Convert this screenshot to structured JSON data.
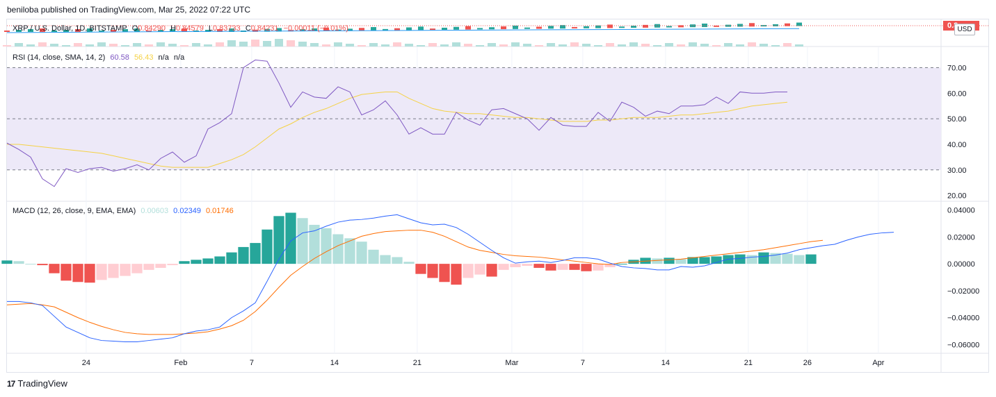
{
  "header": {
    "publisher_line": "beniloba published on TradingView.com, Mar 25, 2022 07:22 UTC"
  },
  "footer": {
    "brand": "TradingView",
    "logo_glyph": "17"
  },
  "price_pane": {
    "symbol": "XRP / U.S. Dollar, 1D, BITSTAMP",
    "open_label": "O",
    "open": "0.84290",
    "high_label": "H",
    "high": "0.84579",
    "low_label": "L",
    "low": "0.83733",
    "close_label": "C",
    "close": "0.84231",
    "change": "−0.00011 (−0.01%)",
    "price_tag": "0.8",
    "currency": "USD",
    "colors": {
      "up": "#26a69a",
      "down": "#ef5350",
      "ma": "#2196f3"
    }
  },
  "rsi_pane": {
    "title": "RSI (14, close, SMA, 14, 2)",
    "rsi_value": "60.58",
    "sma_value": "56.43",
    "extra1": "n/a",
    "extra2": "n/a",
    "colors": {
      "rsi": "#7e57c2",
      "sma": "#f5d245",
      "band": "#ede9f8"
    }
  },
  "macd_pane": {
    "title": "MACD (12, 26, close, 9, EMA, EMA)",
    "hist_value": "0.00603",
    "macd_value": "0.02349",
    "signal_value": "0.01746",
    "colors": {
      "macd": "#2962ff",
      "signal": "#ff6d00",
      "hist_up_strong": "#26a69a",
      "hist_up_weak": "#b2dfdb",
      "hist_down_strong": "#ef5350",
      "hist_down_weak": "#ffcdd2"
    }
  },
  "chart_data": [
    {
      "type": "line",
      "title": "RSI (14, close, SMA, 14, 2)",
      "ylim": [
        18,
        78
      ],
      "y_ticks": [
        "70.00",
        "60.00",
        "50.00",
        "40.00",
        "30.00",
        "20.00"
      ],
      "y_tick_values": [
        70,
        60,
        50,
        40,
        30,
        20
      ],
      "levels": [
        70,
        50,
        30
      ],
      "series": [
        {
          "name": "RSI",
          "values": [
            40.5,
            38,
            35,
            26.5,
            23.5,
            30.5,
            29,
            30.5,
            31,
            29.5,
            30.5,
            32,
            30,
            34.5,
            37,
            33,
            35.5,
            46,
            48.5,
            52,
            70,
            73,
            72.5,
            64,
            54.5,
            60.5,
            58.5,
            58,
            62.5,
            60.5,
            51.5,
            53.5,
            57,
            51.5,
            44,
            46.5,
            44,
            44,
            52.5,
            49.5,
            47.5,
            53.5,
            54,
            52,
            50,
            45.5,
            50.5,
            47.5,
            47,
            47,
            52.5,
            49,
            56.5,
            54.5,
            51,
            53,
            52,
            55,
            55,
            55.5,
            58.5,
            56,
            60.5,
            60,
            60,
            60.5,
            60.5
          ]
        },
        {
          "name": "SMA",
          "values": [
            40,
            40,
            39.5,
            39,
            38.5,
            38,
            37.5,
            37,
            36.5,
            35.5,
            34.5,
            33.5,
            32.5,
            31.5,
            31,
            31,
            31,
            31,
            32.5,
            34,
            36,
            39,
            42.5,
            46,
            48,
            50.5,
            52.5,
            54,
            56,
            58,
            59.5,
            60,
            60.5,
            60.5,
            58,
            56,
            54,
            53,
            52.5,
            52,
            52,
            51.5,
            51,
            50.5,
            50.5,
            50,
            49.5,
            49,
            49,
            49,
            49.5,
            49.5,
            50,
            50.5,
            50.5,
            50.5,
            51,
            51.5,
            51.5,
            52,
            52.5,
            53,
            54,
            55,
            55.5,
            56,
            56.5
          ]
        }
      ]
    },
    {
      "type": "bar",
      "title": "MACD (12, 26, close, 9, EMA, EMA)",
      "ylim": [
        -0.066,
        0.046
      ],
      "y_ticks": [
        "0.04000",
        "0.02000",
        "0.00000",
        "−0.02000",
        "−0.04000",
        "−0.06000"
      ],
      "y_tick_values": [
        0.04,
        0.02,
        0,
        -0.02,
        -0.04,
        -0.06
      ],
      "x_ticks": [
        {
          "label": "24",
          "index": 6.7
        },
        {
          "label": "Feb",
          "index": 14.7
        },
        {
          "label": "7",
          "index": 20.7
        },
        {
          "label": "14",
          "index": 27.7
        },
        {
          "label": "21",
          "index": 34.7
        },
        {
          "label": "Mar",
          "index": 42.7
        },
        {
          "label": "7",
          "index": 48.7
        },
        {
          "label": "14",
          "index": 55.7
        },
        {
          "label": "21",
          "index": 62.7
        },
        {
          "label": "26",
          "index": 67.7
        },
        {
          "label": "Apr",
          "index": 73.7
        }
      ],
      "x_count": 80,
      "series": [
        {
          "name": "Histogram",
          "values": [
            0.0025,
            0.002,
            0,
            -0.001,
            -0.007,
            -0.0125,
            -0.0135,
            -0.014,
            -0.012,
            -0.0105,
            -0.009,
            -0.007,
            -0.0045,
            -0.003,
            -0.001,
            0.002,
            0.003,
            0.004,
            0.0055,
            0.0085,
            0.0125,
            0.0155,
            0.0255,
            0.0355,
            0.038,
            0.034,
            0.029,
            0.0265,
            0.022,
            0.019,
            0.0165,
            0.0105,
            0.0065,
            0.005,
            0.0015,
            -0.0075,
            -0.0105,
            -0.0135,
            -0.0155,
            -0.0105,
            -0.008,
            -0.0095,
            -0.0045,
            -0.0025,
            -0.0015,
            -0.003,
            -0.005,
            -0.0045,
            -0.0045,
            -0.0055,
            -0.005,
            -0.0025,
            0,
            0.003,
            0.0045,
            0.004,
            0.0045,
            0.0035,
            0.005,
            0.005,
            0.0055,
            0.0065,
            0.007,
            0.0065,
            0.0085,
            0.008,
            0.0075,
            0.0065,
            0.007
          ]
        },
        {
          "name": "MACD",
          "values": [
            -0.028,
            -0.028,
            -0.029,
            -0.031,
            -0.039,
            -0.047,
            -0.051,
            -0.055,
            -0.057,
            -0.0575,
            -0.058,
            -0.058,
            -0.057,
            -0.056,
            -0.055,
            -0.052,
            -0.05,
            -0.049,
            -0.047,
            -0.04,
            -0.035,
            -0.029,
            -0.013,
            0.0035,
            0.017,
            0.023,
            0.0245,
            0.028,
            0.031,
            0.0325,
            0.033,
            0.034,
            0.0355,
            0.0365,
            0.0335,
            0.0305,
            0.029,
            0.0295,
            0.027,
            0.022,
            0.016,
            0.01,
            0.0045,
            0.0005,
            0.0015,
            0.002,
            0.001,
            0.0025,
            0.0045,
            0.0045,
            0.0035,
            0.0005,
            -0.002,
            -0.003,
            -0.0035,
            -0.0045,
            -0.0045,
            -0.002,
            -0.0025,
            -0.0015,
            0.001,
            0.0035,
            0.004,
            0.005,
            0.0055,
            0.0065,
            0.008,
            0.0105,
            0.012,
            0.0135,
            0.0145,
            0.0175,
            0.02,
            0.022,
            0.023,
            0.0235
          ]
        },
        {
          "name": "Signal",
          "values": [
            -0.0305,
            -0.03,
            -0.0295,
            -0.0305,
            -0.032,
            -0.036,
            -0.04,
            -0.0435,
            -0.0465,
            -0.049,
            -0.051,
            -0.052,
            -0.0525,
            -0.0525,
            -0.0525,
            -0.052,
            -0.0515,
            -0.0505,
            -0.0485,
            -0.046,
            -0.042,
            -0.0355,
            -0.027,
            -0.0175,
            -0.0085,
            -0.002,
            0.004,
            0.009,
            0.0135,
            0.017,
            0.0205,
            0.0225,
            0.024,
            0.0245,
            0.025,
            0.025,
            0.0235,
            0.0205,
            0.0165,
            0.0125,
            0.01,
            0.0085,
            0.007,
            0.006,
            0.0055,
            0.005,
            0.004,
            0.003,
            0.002,
            0.001,
            0,
            -0.0005,
            0.001,
            0.0015,
            0.002,
            0.0025,
            0.003,
            0.0035,
            0.0045,
            0.0055,
            0.0065,
            0.0075,
            0.0085,
            0.0095,
            0.0105,
            0.012,
            0.0135,
            0.015,
            0.0165,
            0.0175
          ]
        }
      ]
    }
  ]
}
